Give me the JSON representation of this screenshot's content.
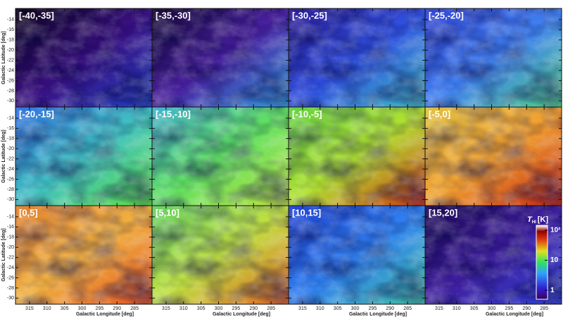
{
  "figure": {
    "panels": [
      "[-40,-35]",
      "[-35,-30]",
      "[-30,-25]",
      "[-25,-20]",
      "[-20,-15]",
      "[-15,-10]",
      "[-10,-5]",
      "[-5,0]",
      "[0,5]",
      "[5,10]",
      "[10,15]",
      "[15,20]"
    ],
    "x_axis": {
      "label": "Galactic Longitude [deg]",
      "lim": [
        319,
        280
      ],
      "ticks": [
        315,
        310,
        305,
        300,
        295,
        290,
        285
      ]
    },
    "y_axis": {
      "label": "Galactic Latitude [deg]",
      "lim": [
        -31.2,
        -11.8
      ],
      "ticks": [
        -14,
        -16,
        -18,
        -20,
        -22,
        -24,
        -26,
        -28,
        -30
      ]
    },
    "colorbar": {
      "symbol": "T",
      "subscript": "HI",
      "unit": "[K]",
      "log": true,
      "lim": [
        0.5,
        145
      ],
      "ticks": [
        {
          "value": 100,
          "label": "10²"
        },
        10,
        1
      ]
    }
  }
}
